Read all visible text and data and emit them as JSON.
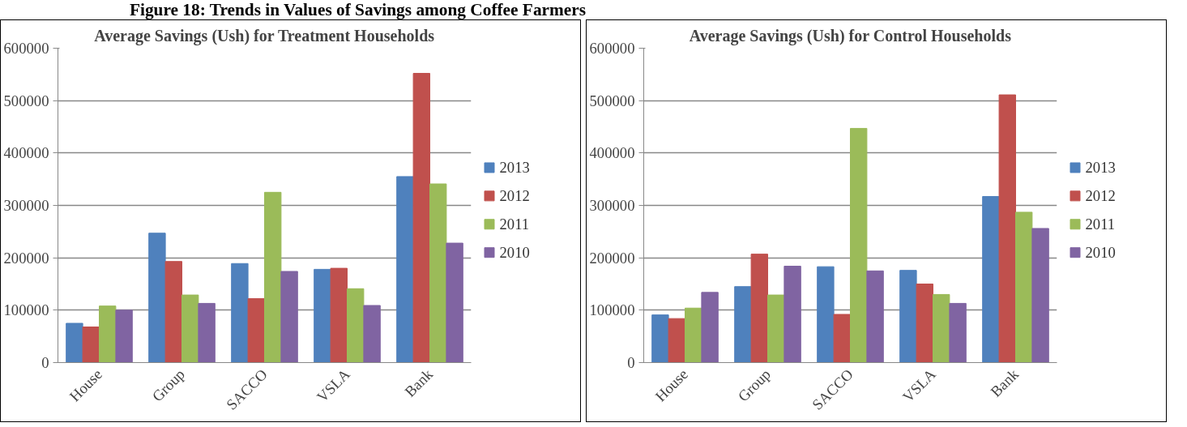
{
  "chart_data": [
    {
      "type": "bar",
      "title": "Average Savings (Ush) for Treatment Households",
      "annotations": [
        "Figure 18: Trends in Values of Savings among Coffee Farmers"
      ],
      "categories": [
        "House",
        "Group",
        "SACCO",
        "VSLA",
        "Bank"
      ],
      "series": [
        {
          "name": "2013",
          "color": "#4f81bd",
          "values": [
            75000,
            247000,
            189000,
            178000,
            355000
          ]
        },
        {
          "name": "2012",
          "color": "#c0504d",
          "values": [
            68000,
            193000,
            122000,
            180000,
            552000
          ]
        },
        {
          "name": "2011",
          "color": "#9bbb59",
          "values": [
            108000,
            129000,
            325000,
            141000,
            341000
          ]
        },
        {
          "name": "2010",
          "color": "#8064a2",
          "values": [
            100000,
            113000,
            174000,
            109000,
            228000
          ]
        }
      ],
      "ylim": [
        0,
        600000
      ],
      "yticks": [
        0,
        100000,
        200000,
        300000,
        400000,
        500000,
        600000
      ],
      "grid": "y",
      "legend": "right"
    },
    {
      "type": "bar",
      "title": "Average Savings (Ush) for Control Households",
      "categories": [
        "House",
        "Group",
        "SACCO",
        "VSLA",
        "Bank"
      ],
      "series": [
        {
          "name": "2013",
          "color": "#4f81bd",
          "values": [
            91000,
            145000,
            183000,
            176000,
            317000
          ]
        },
        {
          "name": "2012",
          "color": "#c0504d",
          "values": [
            84000,
            207000,
            92000,
            150000,
            511000
          ]
        },
        {
          "name": "2011",
          "color": "#9bbb59",
          "values": [
            104000,
            129000,
            447000,
            130000,
            287000
          ]
        },
        {
          "name": "2010",
          "color": "#8064a2",
          "values": [
            134000,
            184000,
            175000,
            113000,
            256000
          ]
        }
      ],
      "ylim": [
        0,
        600000
      ],
      "yticks": [
        0,
        100000,
        200000,
        300000,
        400000,
        500000,
        600000
      ],
      "grid": "y",
      "legend": "right"
    }
  ]
}
